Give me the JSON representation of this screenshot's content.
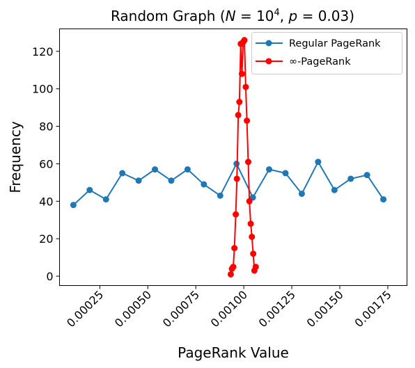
{
  "chart_data": {
    "type": "line",
    "title_prefix": "Random Graph (",
    "title_n": "N",
    "title_eq1": " = 10",
    "title_exp": "4",
    "title_sep": ", ",
    "title_p": "p",
    "title_eq2": " = 0.03)",
    "xlabel": "PageRank Value",
    "ylabel": "Frequency",
    "xlim": [
      4e-05,
      0.00185
    ],
    "ylim": [
      -5,
      132
    ],
    "xticks": [
      0.00025,
      0.0005,
      0.00075,
      0.001,
      0.00125,
      0.0015,
      0.00175
    ],
    "xtick_labels": [
      "0.00025",
      "0.00050",
      "0.00075",
      "0.00100",
      "0.00125",
      "0.00150",
      "0.00175"
    ],
    "yticks": [
      0,
      20,
      40,
      60,
      80,
      100,
      120
    ],
    "ytick_labels": [
      "0",
      "20",
      "40",
      "60",
      "80",
      "100",
      "120"
    ],
    "legend_position": "top-right",
    "series": [
      {
        "name": "Regular PageRank",
        "color": "#1f77b4",
        "x": [
          0.000112,
          0.000197,
          0.000282,
          0.000367,
          0.000452,
          0.000537,
          0.000622,
          0.000707,
          0.000792,
          0.000877,
          0.000962,
          0.001047,
          0.001132,
          0.001217,
          0.001302,
          0.001387,
          0.001472,
          0.001557,
          0.001642,
          0.001727
        ],
        "y": [
          38,
          46,
          41,
          55,
          51,
          57,
          51,
          57,
          49,
          43,
          60,
          42,
          57,
          55,
          44,
          61,
          46,
          52,
          54,
          41
        ]
      },
      {
        "name": "∞-PageRank",
        "color": "#ff0000",
        "x": [
          0.000932,
          0.000938,
          0.000945,
          0.000951,
          0.000958,
          0.000964,
          0.000971,
          0.000977,
          0.000984,
          0.00099,
          0.000997,
          0.001003,
          0.00101,
          0.001016,
          0.001023,
          0.001029,
          0.001036,
          0.001042,
          0.001049,
          0.001055,
          0.001062
        ],
        "y": [
          1,
          4,
          5,
          15,
          33,
          52,
          86,
          93,
          124,
          108,
          125,
          126,
          101,
          83,
          61,
          40,
          28,
          21,
          12,
          3,
          5
        ]
      }
    ]
  }
}
